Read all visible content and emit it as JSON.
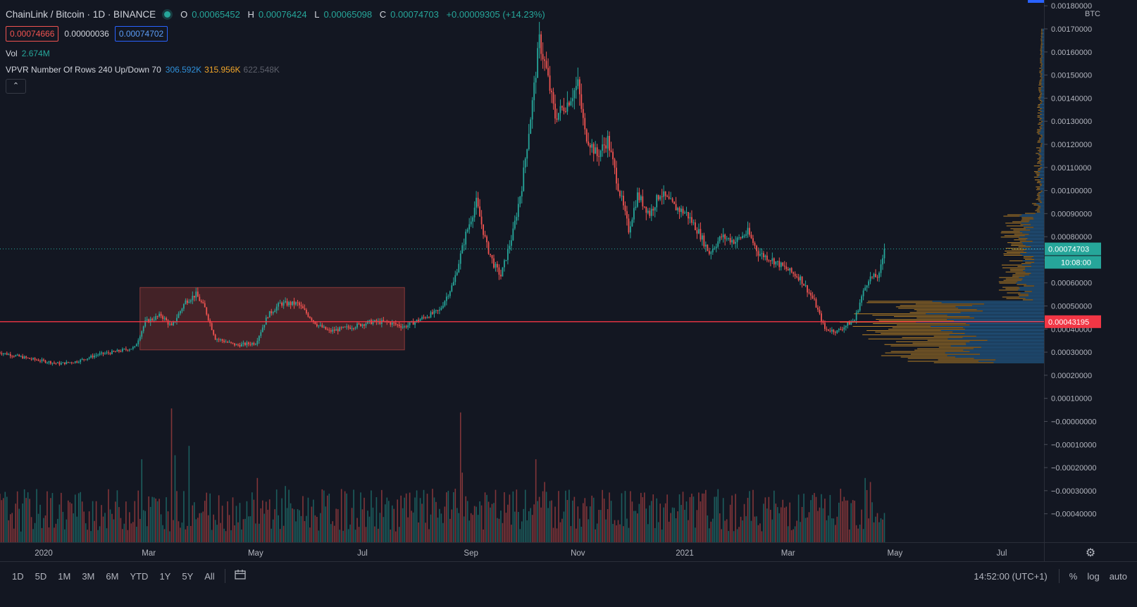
{
  "legend": {
    "symbol": "ChainLink / Bitcoin · 1D · BINANCE",
    "o_label": "O",
    "o": "0.00065452",
    "h_label": "H",
    "h": "0.00076424",
    "l_label": "L",
    "l": "0.00065098",
    "c_label": "C",
    "c": "0.00074703",
    "change": "+0.00009305 (+14.23%)"
  },
  "prices": {
    "sell": "0.00074666",
    "spread": "0.00000036",
    "buy": "0.00074702"
  },
  "volume": {
    "label": "Vol",
    "value": "2.674M"
  },
  "vpvr": {
    "label": "VPVR Number Of Rows 240 Up/Down 70",
    "up": "306.592K",
    "down": "315.956K",
    "total": "622.548K"
  },
  "collapse_icon": "chevron-up-icon",
  "toolbar": {
    "timeframes": [
      "1D",
      "5D",
      "1M",
      "3M",
      "6M",
      "YTD",
      "1Y",
      "5Y",
      "All"
    ],
    "calendar_icon": "date-range-icon",
    "clock": "14:52:00 (UTC+1)",
    "percent": "%",
    "log": "log",
    "auto": "auto"
  },
  "colors": {
    "bg": "#131722",
    "up": "#26a69a",
    "down": "#ef5350",
    "vpvr_up": "#2f8fd8",
    "vpvr_down": "#f0a52a",
    "level": "#f23645",
    "range_box": "#6b2b2b"
  },
  "chart_data": {
    "type": "candlestick",
    "currency": "BTC",
    "y_ticks": [
      "0.00180000",
      "0.00170000",
      "0.00160000",
      "0.00150000",
      "0.00140000",
      "0.00130000",
      "0.00120000",
      "0.00110000",
      "0.00100000",
      "0.00090000",
      "0.00080000",
      "0.00070000",
      "0.00060000",
      "0.00050000",
      "0.00040000",
      "0.00030000",
      "0.00020000",
      "0.00010000",
      "−0.00000000",
      "−0.00010000",
      "−0.00020000",
      "−0.00030000",
      "−0.00040000"
    ],
    "y_tick_values": [
      0.0018,
      0.0017,
      0.0016,
      0.0015,
      0.0014,
      0.0013,
      0.0012,
      0.0011,
      0.001,
      0.0009,
      0.0008,
      0.0007,
      0.0006,
      0.0005,
      0.0004,
      0.0003,
      0.0002,
      0.0001,
      0,
      -0.0001,
      -0.0002,
      -0.0003,
      -0.0004
    ],
    "ylim": [
      -0.00045,
      0.0018
    ],
    "x_labels": [
      "2020",
      "Mar",
      "May",
      "Jul",
      "Sep",
      "Nov",
      "2021",
      "Mar",
      "May",
      "Jul"
    ],
    "x_label_dates": [
      "2020-01-01",
      "2020-03-01",
      "2020-05-01",
      "2020-07-01",
      "2020-09-01",
      "2020-11-01",
      "2021-01-01",
      "2021-03-01",
      "2021-05-01",
      "2021-07-01"
    ],
    "xlim": [
      "2019-12-06",
      "2021-08-10"
    ],
    "price_path": [
      [
        "2019-12-06",
        0.0003
      ],
      [
        "2019-12-25",
        0.00027
      ],
      [
        "2020-01-10",
        0.00025
      ],
      [
        "2020-01-20",
        0.00026
      ],
      [
        "2020-02-01",
        0.00029
      ],
      [
        "2020-02-10",
        0.0003
      ],
      [
        "2020-02-22",
        0.00032
      ],
      [
        "2020-02-28",
        0.00043
      ],
      [
        "2020-03-08",
        0.00046
      ],
      [
        "2020-03-14",
        0.00041
      ],
      [
        "2020-03-22",
        0.00052
      ],
      [
        "2020-03-28",
        0.00055
      ],
      [
        "2020-04-02",
        0.00049
      ],
      [
        "2020-04-08",
        0.00036
      ],
      [
        "2020-04-20",
        0.00033
      ],
      [
        "2020-05-01",
        0.00034
      ],
      [
        "2020-05-08",
        0.00046
      ],
      [
        "2020-05-15",
        0.00051
      ],
      [
        "2020-05-25",
        0.00051
      ],
      [
        "2020-06-05",
        0.00042
      ],
      [
        "2020-06-12",
        0.00039
      ],
      [
        "2020-06-25",
        0.00041
      ],
      [
        "2020-07-05",
        0.00043
      ],
      [
        "2020-07-15",
        0.00043
      ],
      [
        "2020-07-25",
        0.00041
      ],
      [
        "2020-08-05",
        0.00045
      ],
      [
        "2020-08-14",
        0.00048
      ],
      [
        "2020-08-22",
        0.0006
      ],
      [
        "2020-08-29",
        0.00081
      ],
      [
        "2020-09-04",
        0.00095
      ],
      [
        "2020-09-10",
        0.00076
      ],
      [
        "2020-09-14",
        0.00068
      ],
      [
        "2020-09-18",
        0.00063
      ],
      [
        "2020-09-25",
        0.00082
      ],
      [
        "2020-09-30",
        0.00102
      ],
      [
        "2020-10-06",
        0.00138
      ],
      [
        "2020-10-10",
        0.00165
      ],
      [
        "2020-10-14",
        0.00152
      ],
      [
        "2020-10-19",
        0.00132
      ],
      [
        "2020-10-26",
        0.00138
      ],
      [
        "2020-11-01",
        0.00146
      ],
      [
        "2020-11-05",
        0.00125
      ],
      [
        "2020-11-12",
        0.00115
      ],
      [
        "2020-11-18",
        0.00122
      ],
      [
        "2020-11-24",
        0.00102
      ],
      [
        "2020-11-30",
        0.00083
      ],
      [
        "2020-12-05",
        0.00098
      ],
      [
        "2020-12-12",
        0.0009
      ],
      [
        "2020-12-18",
        0.00099
      ],
      [
        "2020-12-26",
        0.00093
      ],
      [
        "2021-01-02",
        0.0009
      ],
      [
        "2021-01-09",
        0.00082
      ],
      [
        "2021-01-15",
        0.00073
      ],
      [
        "2021-01-22",
        0.0008
      ],
      [
        "2021-01-30",
        0.00078
      ],
      [
        "2021-02-06",
        0.00082
      ],
      [
        "2021-02-12",
        0.00073
      ],
      [
        "2021-02-20",
        0.0007
      ],
      [
        "2021-02-28",
        0.00066
      ],
      [
        "2021-03-08",
        0.00062
      ],
      [
        "2021-03-16",
        0.00052
      ],
      [
        "2021-03-22",
        0.0004
      ],
      [
        "2021-03-29",
        0.00039
      ],
      [
        "2021-04-04",
        0.00042
      ],
      [
        "2021-04-08",
        0.00044
      ],
      [
        "2021-04-12",
        0.00054
      ],
      [
        "2021-04-16",
        0.00062
      ],
      [
        "2021-04-22",
        0.00063
      ],
      [
        "2021-04-25",
        0.00074703
      ]
    ],
    "last_price": "0.00074703",
    "countdown": "10:08:00",
    "level_price": 0.00043195,
    "level_label": "0.00043195",
    "range_box": {
      "from": "2020-02-25",
      "to": "2020-07-25",
      "top": 0.00058,
      "bottom": 0.00031
    },
    "volume_spikes": [
      [
        "2020-03-14",
        1.0
      ],
      [
        "2020-03-24",
        0.72
      ],
      [
        "2020-03-16",
        0.65
      ],
      [
        "2020-02-26",
        0.62
      ],
      [
        "2020-05-02",
        0.48
      ],
      [
        "2020-05-18",
        0.42
      ],
      [
        "2020-08-26",
        0.97
      ],
      [
        "2020-08-27",
        0.52
      ],
      [
        "2020-10-08",
        0.62
      ],
      [
        "2020-10-13",
        0.45
      ],
      [
        "2021-04-14",
        0.48
      ],
      [
        "2021-04-17",
        0.45
      ]
    ],
    "vpvr_profile_range": [
      0.00025,
      0.0017
    ],
    "vpvr_poc": 0.00043
  }
}
